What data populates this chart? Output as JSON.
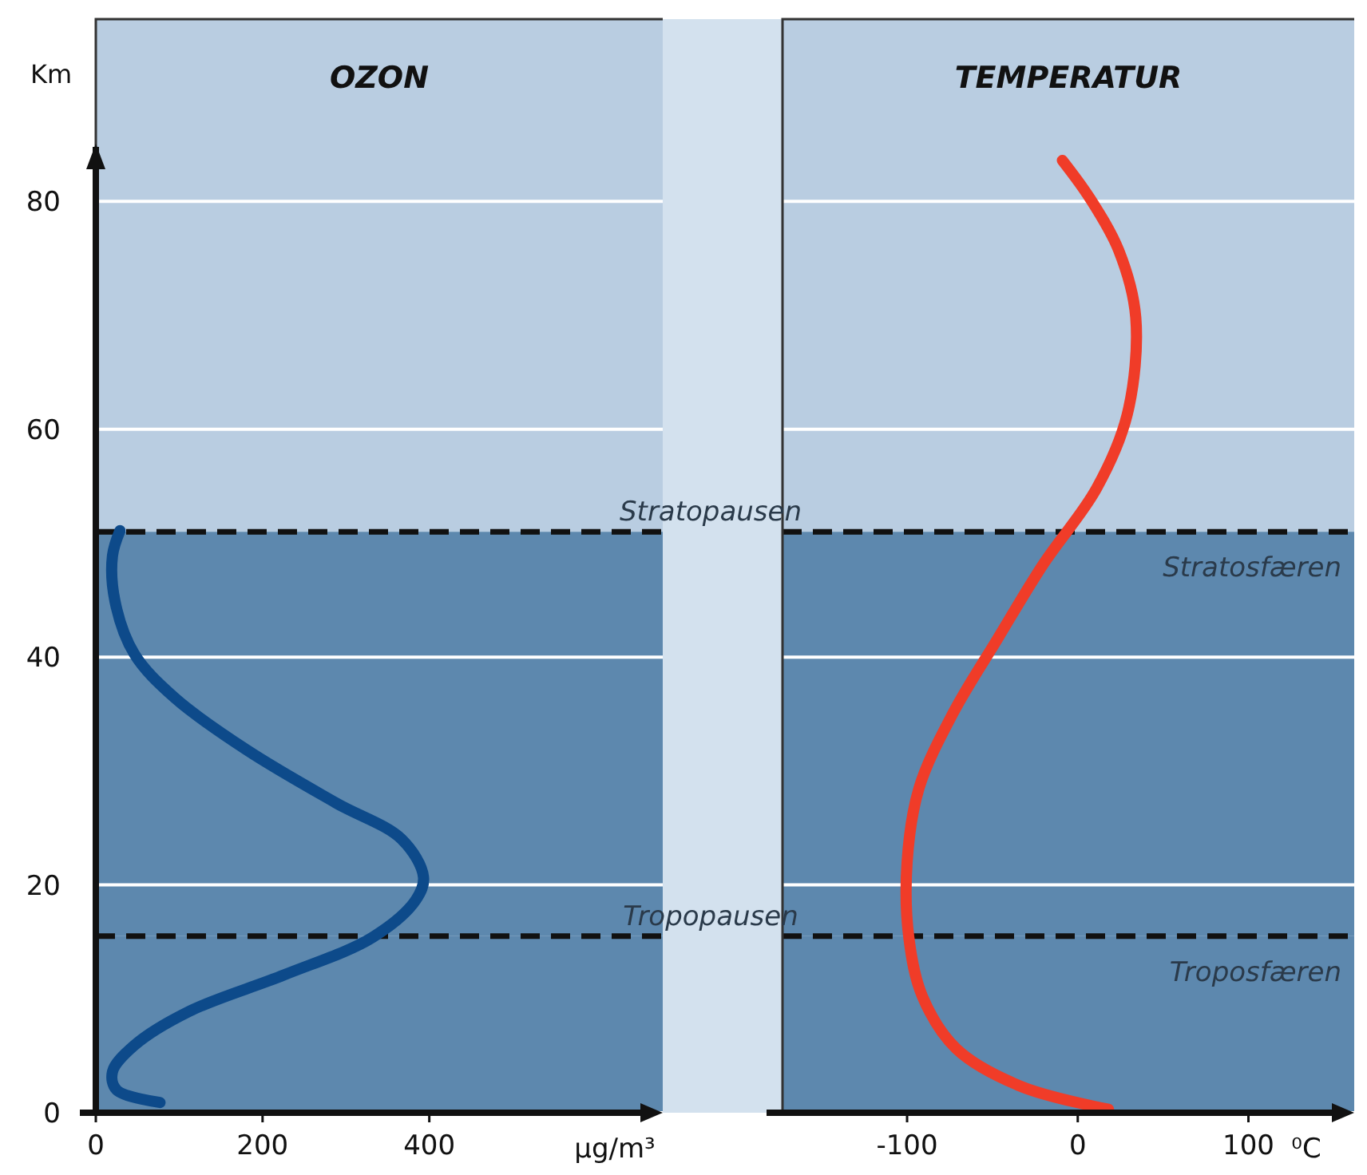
{
  "chart_data": [
    {
      "type": "line",
      "title": "OZON",
      "xlabel": "µg/m³",
      "ylabel": "Km",
      "xlim": [
        0,
        680
      ],
      "xticks": [
        0,
        200,
        400
      ],
      "ylim": [
        0,
        96
      ],
      "yticks": [
        0,
        20,
        40,
        60,
        80
      ],
      "grid": "y",
      "series": [
        {
          "color": "#0d4a8a",
          "x": [
            77,
            25,
            20,
            46,
            112,
            226,
            332,
            384,
            393,
            367,
            288,
            182,
            95,
            46,
            23,
            20,
            29
          ],
          "values": [
            0.9,
            2.0,
            3.6,
            5.9,
            8.9,
            12.1,
            15.4,
            18.7,
            20.7,
            24,
            27.2,
            31.8,
            36.4,
            40.3,
            44.9,
            48.9,
            51.1
          ]
        }
      ],
      "ref_lines": [
        {
          "axis": "y",
          "value": 51,
          "label": "Stratopausen"
        },
        {
          "axis": "y",
          "value": 15.5,
          "label": "Tropopausen"
        }
      ],
      "bands": [
        {
          "axis": "y",
          "from": 51,
          "to": 96,
          "color": "#b9cde1"
        },
        {
          "axis": "y",
          "from": 15.5,
          "to": 51,
          "color": "#5d88ae"
        },
        {
          "axis": "y",
          "from": 0,
          "to": 15.5,
          "color": "#5d88ae"
        }
      ]
    },
    {
      "type": "line",
      "title": "TEMPERATUR",
      "xlabel": "⁰C",
      "xlim": [
        -173,
        162
      ],
      "xticks": [
        -100,
        0,
        100
      ],
      "ylim": [
        0,
        96
      ],
      "yticks": [
        0,
        20,
        40,
        60,
        80
      ],
      "grid": "y",
      "tick_labels": "x",
      "series": [
        {
          "color": "#f03c28",
          "x": [
            18,
            -33,
            -71,
            -91,
            -99,
            -100,
            -93,
            -73,
            -47,
            -20,
            11,
            29,
            34,
            24,
            7,
            -9
          ],
          "values": [
            0.3,
            2.3,
            5.6,
            10.2,
            15.4,
            22,
            28.5,
            35.1,
            41.6,
            48.2,
            54.8,
            61.3,
            69.8,
            75.7,
            80.3,
            83.6
          ]
        }
      ],
      "ref_lines": [
        {
          "axis": "y",
          "value": 51
        },
        {
          "axis": "y",
          "value": 15.5
        }
      ],
      "bands": [
        {
          "axis": "y",
          "from": 51,
          "to": 96,
          "color": "#b9cde1"
        },
        {
          "axis": "y",
          "from": 15.5,
          "to": 51,
          "color": "#5d88ae",
          "label": "Stratosfæren"
        },
        {
          "axis": "y",
          "from": 0,
          "to": 15.5,
          "color": "#5d88ae",
          "label": "Troposfæren"
        }
      ]
    }
  ]
}
